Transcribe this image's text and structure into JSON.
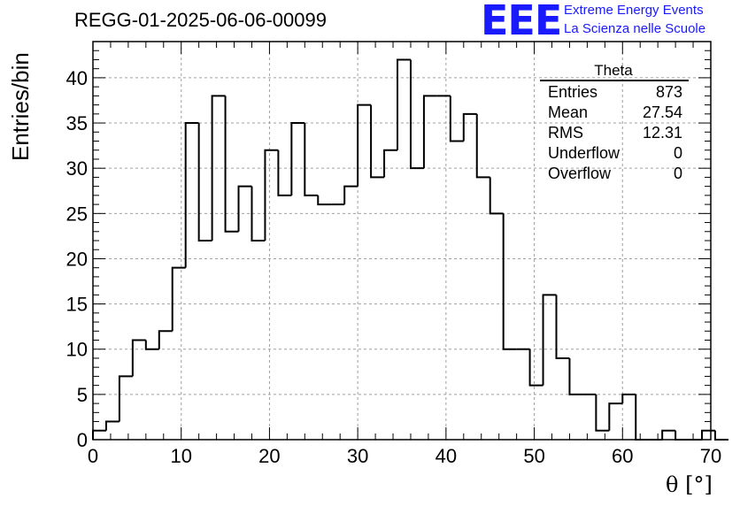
{
  "header": {
    "title": "REGG-01-2025-06-06-00099",
    "logo_text": "EEE",
    "tagline_1": "Extreme Energy Events",
    "tagline_2": "La Scienza nelle Scuole",
    "brand_color": "#1a1aff"
  },
  "stats": {
    "title": "Theta",
    "rows": [
      {
        "label": "Entries",
        "value": "873"
      },
      {
        "label": "Mean",
        "value": "27.54"
      },
      {
        "label": "RMS",
        "value": "12.31"
      },
      {
        "label": "Underflow",
        "value": "0"
      },
      {
        "label": "Overflow",
        "value": "0"
      }
    ]
  },
  "chart_data": {
    "type": "bar",
    "style": "step-histogram",
    "xlabel": "θ [°]",
    "ylabel": "Entries/bin",
    "xlim": [
      0,
      70
    ],
    "ylim": [
      0,
      44
    ],
    "xticks": [
      0,
      10,
      20,
      30,
      40,
      50,
      60,
      70
    ],
    "yticks": [
      0,
      5,
      10,
      15,
      20,
      25,
      30,
      35,
      40
    ],
    "grid": true,
    "legend": "top-right",
    "bin_width": 1.5,
    "bin_edges_start": 0,
    "values": [
      1,
      2,
      7,
      11,
      10,
      12,
      19,
      35,
      22,
      38,
      23,
      28,
      22,
      32,
      27,
      35,
      27,
      26,
      26,
      28,
      37,
      29,
      32,
      42,
      30,
      38,
      38,
      33,
      36,
      29,
      25,
      10,
      10,
      6,
      16,
      9,
      5,
      5,
      1,
      4,
      5,
      0,
      0,
      1,
      0,
      0,
      1,
      0
    ]
  }
}
